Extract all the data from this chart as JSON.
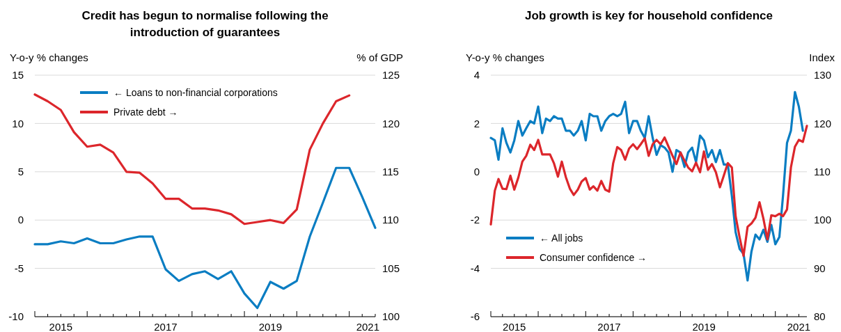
{
  "chart_data": [
    {
      "type": "line",
      "title": "Credit has begun to normalise following the introduction of guarantees",
      "ylabel": "Y-o-y % changes",
      "y2label": "% of GDP",
      "x": [
        "2015-01",
        "2015-04",
        "2015-07",
        "2015-10",
        "2016-01",
        "2016-04",
        "2016-07",
        "2016-10",
        "2017-01",
        "2017-04",
        "2017-07",
        "2017-10",
        "2018-01",
        "2018-04",
        "2018-07",
        "2018-10",
        "2019-01",
        "2019-04",
        "2019-07",
        "2019-10",
        "2020-01",
        "2020-04",
        "2020-07",
        "2020-10",
        "2021-01",
        "2021-04",
        "2021-07"
      ],
      "xlim": [
        "2015-01",
        "2021-07"
      ],
      "xticks": [
        {
          "value": "2015-01",
          "label": null
        },
        {
          "value": "2015-04",
          "label": null
        },
        {
          "value": "2015-07",
          "label": "2015"
        },
        {
          "value": "2015-10",
          "label": null
        },
        {
          "value": "2016-01",
          "label": null
        },
        {
          "value": "2016-04",
          "label": null
        },
        {
          "value": "2016-07",
          "label": null
        },
        {
          "value": "2016-10",
          "label": null
        },
        {
          "value": "2017-01",
          "label": null
        },
        {
          "value": "2017-04",
          "label": null
        },
        {
          "value": "2017-07",
          "label": "2017"
        },
        {
          "value": "2017-10",
          "label": null
        },
        {
          "value": "2018-01",
          "label": null
        },
        {
          "value": "2018-04",
          "label": null
        },
        {
          "value": "2018-07",
          "label": null
        },
        {
          "value": "2018-10",
          "label": null
        },
        {
          "value": "2019-01",
          "label": null
        },
        {
          "value": "2019-04",
          "label": null
        },
        {
          "value": "2019-07",
          "label": "2019"
        },
        {
          "value": "2019-10",
          "label": null
        },
        {
          "value": "2020-01",
          "label": null
        },
        {
          "value": "2020-04",
          "label": null
        },
        {
          "value": "2020-07",
          "label": null
        },
        {
          "value": "2020-10",
          "label": null
        },
        {
          "value": "2021-01",
          "label": null
        },
        {
          "value": "2021-04",
          "label": null
        },
        {
          "value": "2021-07",
          "label": "2021"
        }
      ],
      "ylim": [
        -10,
        15
      ],
      "yticks": [
        -10,
        -5,
        0,
        5,
        10,
        15
      ],
      "y2lim": [
        100,
        125
      ],
      "y2ticks": [
        100,
        105,
        110,
        115,
        120,
        125
      ],
      "grid": "y",
      "legend": "top left",
      "series": [
        {
          "name": "← Loans to non-financial corporations",
          "color": "#0a7dc2",
          "values": [
            -2.5,
            -2.5,
            -2.2,
            -2.4,
            -1.9,
            -2.4,
            -2.4,
            -2.0,
            -1.7,
            -1.7,
            -5.1,
            -6.3,
            -5.6,
            -5.3,
            -6.1,
            -5.3,
            -7.6,
            -9.1,
            -6.4,
            -7.1,
            -6.3,
            -1.7,
            1.8,
            5.4,
            5.4,
            2.4,
            -0.8
          ]
        },
        {
          "name": "Private debt →",
          "color": "#dc262b",
          "axis": "y2",
          "values": [
            123.0,
            122.3,
            121.4,
            119.1,
            117.6,
            117.8,
            117.0,
            115.0,
            114.9,
            113.8,
            112.2,
            112.2,
            111.2,
            111.2,
            111.0,
            110.6,
            109.6,
            109.8,
            110.0,
            109.7,
            111.1,
            117.3,
            120.0,
            122.3,
            122.9,
            null,
            null
          ]
        }
      ]
    },
    {
      "type": "line",
      "title": "Job growth is key for household confidence",
      "ylabel": "Y-o-y % changes",
      "y2label": "Index",
      "x": [
        "2015-01",
        "2015-02",
        "2015-03",
        "2015-04",
        "2015-05",
        "2015-06",
        "2015-07",
        "2015-08",
        "2015-09",
        "2015-10",
        "2015-11",
        "2015-12",
        "2016-01",
        "2016-02",
        "2016-03",
        "2016-04",
        "2016-05",
        "2016-06",
        "2016-07",
        "2016-08",
        "2016-09",
        "2016-10",
        "2016-11",
        "2016-12",
        "2017-01",
        "2017-02",
        "2017-03",
        "2017-04",
        "2017-05",
        "2017-06",
        "2017-07",
        "2017-08",
        "2017-09",
        "2017-10",
        "2017-11",
        "2017-12",
        "2018-01",
        "2018-02",
        "2018-03",
        "2018-04",
        "2018-05",
        "2018-06",
        "2018-07",
        "2018-08",
        "2018-09",
        "2018-10",
        "2018-11",
        "2018-12",
        "2019-01",
        "2019-02",
        "2019-03",
        "2019-04",
        "2019-05",
        "2019-06",
        "2019-07",
        "2019-08",
        "2019-09",
        "2019-10",
        "2019-11",
        "2019-12",
        "2020-01",
        "2020-02",
        "2020-03",
        "2020-04",
        "2020-05",
        "2020-06",
        "2020-07",
        "2020-08",
        "2020-09",
        "2020-10",
        "2020-11",
        "2020-12",
        "2021-01",
        "2021-02",
        "2021-03",
        "2021-04",
        "2021-05",
        "2021-06",
        "2021-07",
        "2021-08",
        "2021-09"
      ],
      "xlim": [
        "2015-01",
        "2021-09"
      ],
      "xticks": [
        {
          "value": "2015-01",
          "label": null
        },
        {
          "value": "2015-04",
          "label": null
        },
        {
          "value": "2015-07",
          "label": "2015"
        },
        {
          "value": "2015-10",
          "label": null
        },
        {
          "value": "2016-01",
          "label": null
        },
        {
          "value": "2016-04",
          "label": null
        },
        {
          "value": "2016-07",
          "label": null
        },
        {
          "value": "2016-10",
          "label": null
        },
        {
          "value": "2017-01",
          "label": null
        },
        {
          "value": "2017-04",
          "label": null
        },
        {
          "value": "2017-07",
          "label": "2017"
        },
        {
          "value": "2017-10",
          "label": null
        },
        {
          "value": "2018-01",
          "label": null
        },
        {
          "value": "2018-04",
          "label": null
        },
        {
          "value": "2018-07",
          "label": null
        },
        {
          "value": "2018-10",
          "label": null
        },
        {
          "value": "2019-01",
          "label": null
        },
        {
          "value": "2019-04",
          "label": null
        },
        {
          "value": "2019-07",
          "label": "2019"
        },
        {
          "value": "2019-10",
          "label": null
        },
        {
          "value": "2020-01",
          "label": null
        },
        {
          "value": "2020-04",
          "label": null
        },
        {
          "value": "2020-07",
          "label": null
        },
        {
          "value": "2020-10",
          "label": null
        },
        {
          "value": "2021-01",
          "label": null
        },
        {
          "value": "2021-04",
          "label": null
        },
        {
          "value": "2021-07",
          "label": "2021"
        }
      ],
      "ylim": [
        -6,
        4
      ],
      "yticks": [
        -6,
        -4,
        -2,
        0,
        2,
        4
      ],
      "y2lim": [
        80,
        130
      ],
      "y2ticks": [
        80,
        90,
        100,
        110,
        120,
        130
      ],
      "grid": "y",
      "legend": "bottom left",
      "series": [
        {
          "name": "← All jobs",
          "color": "#0a7dc2",
          "values": [
            1.4,
            1.3,
            0.5,
            1.8,
            1.2,
            0.8,
            1.3,
            2.1,
            1.5,
            1.8,
            2.1,
            2.0,
            2.7,
            1.6,
            2.2,
            2.1,
            2.3,
            2.2,
            2.2,
            1.7,
            1.7,
            1.5,
            1.7,
            2.1,
            1.3,
            2.4,
            2.3,
            2.3,
            1.7,
            2.1,
            2.3,
            2.4,
            2.3,
            2.4,
            2.9,
            1.6,
            2.1,
            2.1,
            1.7,
            1.4,
            2.3,
            1.4,
            0.7,
            1.1,
            1.0,
            0.8,
            0.0,
            0.9,
            0.8,
            0.2,
            0.8,
            1.0,
            0.4,
            1.5,
            1.3,
            0.6,
            0.9,
            0.4,
            0.9,
            0.3,
            0.3,
            -1.0,
            -2.5,
            -3.2,
            -3.4,
            -4.5,
            -3.3,
            -2.6,
            -2.8,
            -2.4,
            -2.9,
            -2.2,
            -3.0,
            -2.7,
            -1.0,
            1.2,
            1.7,
            3.3,
            2.7,
            1.7,
            null
          ]
        },
        {
          "name": "Consumer confidence →",
          "color": "#dc262b",
          "axis": "y2",
          "values": [
            99.1,
            106.1,
            108.5,
            106.5,
            106.4,
            109.2,
            106.3,
            108.8,
            112.1,
            113.3,
            115.6,
            114.5,
            116.6,
            113.6,
            113.6,
            113.6,
            111.8,
            109.0,
            112.1,
            108.9,
            106.5,
            105.2,
            106.3,
            108.0,
            108.7,
            106.3,
            107.0,
            106.1,
            108.1,
            106.3,
            105.9,
            111.8,
            115.1,
            114.5,
            112.5,
            114.8,
            115.7,
            114.7,
            115.7,
            116.9,
            113.3,
            115.7,
            116.6,
            115.7,
            117.1,
            115.2,
            113.3,
            111.6,
            114.0,
            112.3,
            110.9,
            110.1,
            111.9,
            109.9,
            114.2,
            110.4,
            111.6,
            109.9,
            106.8,
            109.2,
            111.8,
            110.9,
            100.8,
            96.4,
            92.6,
            98.6,
            99.3,
            100.5,
            103.7,
            100.3,
            96.0,
            101.0,
            100.8,
            101.3,
            100.8,
            102.2,
            110.9,
            115.2,
            116.6,
            116.2,
            119.5
          ]
        }
      ]
    }
  ]
}
